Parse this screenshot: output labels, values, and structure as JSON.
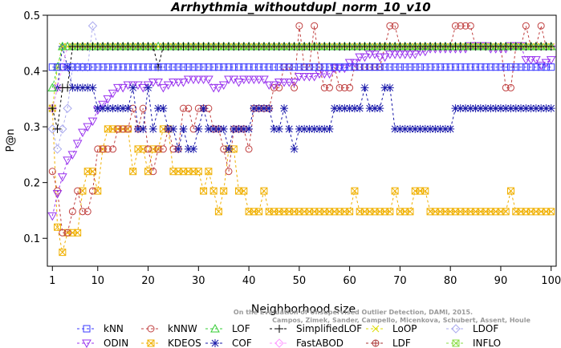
{
  "chart_data": {
    "type": "line",
    "title": "Arrhythmia_withoutdupl_norm_10_v10",
    "xlabel": "Neighborhood size",
    "ylabel": "P@n",
    "xlim": [
      0,
      101
    ],
    "ylim": [
      0.05,
      0.5
    ],
    "xticks": [
      1,
      10,
      20,
      30,
      40,
      50,
      60,
      70,
      80,
      90,
      100
    ],
    "yticks": [
      0.1,
      0.2,
      0.3,
      0.4,
      0.5
    ],
    "grid": false,
    "legend_position": "bottom",
    "credit": "Campos, Zimek, Sander, Campello, Micenkova, Schubert, Assent, Houle",
    "credit_line1": "On the Evaluation of Unsupervised Outlier Detection, DAMI, 2015.",
    "series": [
      {
        "name": "kNN",
        "color": "#3a3aff",
        "marker": "square",
        "dash": "3,3",
        "knots": [
          [
            1,
            0.407
          ],
          [
            100,
            0.407
          ]
        ]
      },
      {
        "name": "kNNW",
        "color": "#c04040",
        "marker": "circle",
        "dash": "3,3",
        "knots": [
          [
            1,
            0.22
          ],
          [
            2,
            0.185
          ],
          [
            3,
            0.11
          ],
          [
            4,
            0.11
          ],
          [
            5,
            0.148
          ],
          [
            6,
            0.185
          ],
          [
            7,
            0.148
          ],
          [
            8,
            0.148
          ],
          [
            9,
            0.185
          ],
          [
            10,
            0.26
          ],
          [
            11,
            0.26
          ],
          [
            12,
            0.26
          ],
          [
            13,
            0.26
          ],
          [
            14,
            0.296
          ],
          [
            16,
            0.296
          ],
          [
            17,
            0.333
          ],
          [
            18,
            0.296
          ],
          [
            19,
            0.333
          ],
          [
            20,
            0.26
          ],
          [
            21,
            0.22
          ],
          [
            22,
            0.26
          ],
          [
            23,
            0.26
          ],
          [
            24,
            0.296
          ],
          [
            25,
            0.26
          ],
          [
            26,
            0.26
          ],
          [
            27,
            0.333
          ],
          [
            28,
            0.333
          ],
          [
            29,
            0.296
          ],
          [
            30,
            0.333
          ],
          [
            32,
            0.333
          ],
          [
            33,
            0.296
          ],
          [
            35,
            0.26
          ],
          [
            36,
            0.22
          ],
          [
            37,
            0.296
          ],
          [
            38,
            0.296
          ],
          [
            39,
            0.296
          ],
          [
            40,
            0.26
          ],
          [
            41,
            0.333
          ],
          [
            44,
            0.333
          ],
          [
            45,
            0.37
          ],
          [
            46,
            0.37
          ],
          [
            47,
            0.407
          ],
          [
            48,
            0.407
          ],
          [
            49,
            0.37
          ],
          [
            50,
            0.481
          ],
          [
            51,
            0.407
          ],
          [
            52,
            0.407
          ],
          [
            53,
            0.481
          ],
          [
            54,
            0.407
          ],
          [
            55,
            0.37
          ],
          [
            56,
            0.37
          ],
          [
            57,
            0.407
          ],
          [
            58,
            0.37
          ],
          [
            60,
            0.37
          ],
          [
            61,
            0.407
          ],
          [
            66,
            0.407
          ],
          [
            67,
            0.444
          ],
          [
            68,
            0.481
          ],
          [
            69,
            0.481
          ],
          [
            70,
            0.444
          ],
          [
            71,
            0.444
          ],
          [
            80,
            0.444
          ],
          [
            81,
            0.481
          ],
          [
            84,
            0.481
          ],
          [
            85,
            0.444
          ],
          [
            90,
            0.444
          ],
          [
            91,
            0.37
          ],
          [
            92,
            0.37
          ],
          [
            93,
            0.444
          ],
          [
            94,
            0.444
          ],
          [
            95,
            0.481
          ],
          [
            96,
            0.444
          ],
          [
            97,
            0.444
          ],
          [
            98,
            0.481
          ],
          [
            99,
            0.444
          ],
          [
            100,
            0.444
          ]
        ]
      },
      {
        "name": "LOF",
        "color": "#33cc33",
        "marker": "triangle",
        "dash": "3,3",
        "knots": [
          [
            1,
            0.37
          ],
          [
            2,
            0.407
          ],
          [
            3,
            0.444
          ],
          [
            100,
            0.444
          ]
        ]
      },
      {
        "name": "SimplifiedLOF",
        "color": "#000000",
        "marker": "plus",
        "dash": "3,3",
        "knots": [
          [
            1,
            0.333
          ],
          [
            2,
            0.296
          ],
          [
            3,
            0.37
          ],
          [
            4,
            0.37
          ],
          [
            5,
            0.444
          ],
          [
            21,
            0.444
          ],
          [
            22,
            0.407
          ],
          [
            23,
            0.444
          ],
          [
            100,
            0.444
          ]
        ]
      },
      {
        "name": "LoOP",
        "color": "#dddd00",
        "marker": "x",
        "dash": "3,3",
        "knots": [
          [
            1,
            0.333
          ],
          [
            2,
            0.407
          ],
          [
            3,
            0.444
          ],
          [
            100,
            0.444
          ]
        ]
      },
      {
        "name": "LDOF",
        "color": "#aaaaee",
        "marker": "diamond",
        "dash": "3,3",
        "knots": [
          [
            1,
            0.296
          ],
          [
            2,
            0.26
          ],
          [
            3,
            0.296
          ],
          [
            4,
            0.333
          ],
          [
            5,
            0.407
          ],
          [
            8,
            0.407
          ],
          [
            9,
            0.481
          ],
          [
            10,
            0.444
          ],
          [
            100,
            0.444
          ]
        ]
      },
      {
        "name": "ODIN",
        "color": "#9933ee",
        "marker": "triangle-down",
        "dash": "3,3",
        "knots": [
          [
            1,
            0.14
          ],
          [
            2,
            0.18
          ],
          [
            3,
            0.21
          ],
          [
            4,
            0.24
          ],
          [
            5,
            0.25
          ],
          [
            6,
            0.27
          ],
          [
            7,
            0.29
          ],
          [
            8,
            0.3
          ],
          [
            9,
            0.31
          ],
          [
            10,
            0.33
          ],
          [
            11,
            0.34
          ],
          [
            12,
            0.35
          ],
          [
            13,
            0.36
          ],
          [
            14,
            0.37
          ],
          [
            16,
            0.375
          ],
          [
            18,
            0.375
          ],
          [
            19,
            0.37
          ],
          [
            20,
            0.375
          ],
          [
            21,
            0.38
          ],
          [
            23,
            0.37
          ],
          [
            24,
            0.375
          ],
          [
            25,
            0.38
          ],
          [
            28,
            0.385
          ],
          [
            32,
            0.385
          ],
          [
            33,
            0.37
          ],
          [
            35,
            0.375
          ],
          [
            36,
            0.385
          ],
          [
            38,
            0.38
          ],
          [
            39,
            0.385
          ],
          [
            42,
            0.385
          ],
          [
            44,
            0.375
          ],
          [
            46,
            0.38
          ],
          [
            50,
            0.39
          ],
          [
            54,
            0.395
          ],
          [
            57,
            0.405
          ],
          [
            60,
            0.415
          ],
          [
            62,
            0.425
          ],
          [
            64,
            0.43
          ],
          [
            66,
            0.425
          ],
          [
            68,
            0.43
          ],
          [
            72,
            0.43
          ],
          [
            74,
            0.435
          ],
          [
            76,
            0.44
          ],
          [
            80,
            0.44
          ],
          [
            84,
            0.445
          ],
          [
            88,
            0.44
          ],
          [
            92,
            0.445
          ],
          [
            95,
            0.42
          ],
          [
            96,
            0.42
          ],
          [
            98,
            0.41
          ],
          [
            99,
            0.415
          ],
          [
            100,
            0.42
          ]
        ]
      },
      {
        "name": "KDEOS",
        "color": "#f0b000",
        "marker": "square-x",
        "dash": "3,3",
        "knots": [
          [
            1,
            0.333
          ],
          [
            2,
            0.12
          ],
          [
            3,
            0.075
          ],
          [
            4,
            0.11
          ],
          [
            6,
            0.11
          ],
          [
            7,
            0.185
          ],
          [
            8,
            0.22
          ],
          [
            9,
            0.22
          ],
          [
            10,
            0.185
          ],
          [
            11,
            0.26
          ],
          [
            12,
            0.296
          ],
          [
            16,
            0.296
          ],
          [
            17,
            0.22
          ],
          [
            18,
            0.26
          ],
          [
            19,
            0.26
          ],
          [
            20,
            0.22
          ],
          [
            21,
            0.26
          ],
          [
            22,
            0.26
          ],
          [
            23,
            0.296
          ],
          [
            24,
            0.296
          ],
          [
            25,
            0.22
          ],
          [
            30,
            0.22
          ],
          [
            31,
            0.185
          ],
          [
            32,
            0.22
          ],
          [
            33,
            0.185
          ],
          [
            34,
            0.148
          ],
          [
            35,
            0.185
          ],
          [
            36,
            0.26
          ],
          [
            37,
            0.26
          ],
          [
            38,
            0.185
          ],
          [
            39,
            0.185
          ],
          [
            40,
            0.148
          ],
          [
            42,
            0.148
          ],
          [
            43,
            0.185
          ],
          [
            44,
            0.148
          ],
          [
            60,
            0.148
          ],
          [
            61,
            0.185
          ],
          [
            62,
            0.148
          ],
          [
            68,
            0.148
          ],
          [
            69,
            0.185
          ],
          [
            70,
            0.148
          ],
          [
            72,
            0.148
          ],
          [
            73,
            0.185
          ],
          [
            75,
            0.185
          ],
          [
            76,
            0.148
          ],
          [
            91,
            0.148
          ],
          [
            92,
            0.185
          ],
          [
            93,
            0.148
          ],
          [
            100,
            0.148
          ]
        ]
      },
      {
        "name": "COF",
        "color": "#1a1aaa",
        "marker": "star",
        "dash": "3,3",
        "knots": [
          [
            1,
            0.333
          ],
          [
            2,
            0.37
          ],
          [
            3,
            0.444
          ],
          [
            4,
            0.407
          ],
          [
            5,
            0.37
          ],
          [
            9,
            0.37
          ],
          [
            10,
            0.333
          ],
          [
            16,
            0.333
          ],
          [
            17,
            0.37
          ],
          [
            18,
            0.296
          ],
          [
            19,
            0.296
          ],
          [
            20,
            0.37
          ],
          [
            21,
            0.296
          ],
          [
            22,
            0.333
          ],
          [
            23,
            0.333
          ],
          [
            24,
            0.296
          ],
          [
            25,
            0.296
          ],
          [
            26,
            0.26
          ],
          [
            27,
            0.296
          ],
          [
            28,
            0.26
          ],
          [
            29,
            0.26
          ],
          [
            30,
            0.296
          ],
          [
            31,
            0.333
          ],
          [
            32,
            0.296
          ],
          [
            35,
            0.296
          ],
          [
            36,
            0.26
          ],
          [
            37,
            0.296
          ],
          [
            38,
            0.296
          ],
          [
            39,
            0.296
          ],
          [
            40,
            0.296
          ],
          [
            41,
            0.333
          ],
          [
            44,
            0.333
          ],
          [
            45,
            0.296
          ],
          [
            46,
            0.296
          ],
          [
            47,
            0.333
          ],
          [
            48,
            0.296
          ],
          [
            49,
            0.26
          ],
          [
            50,
            0.296
          ],
          [
            56,
            0.296
          ],
          [
            57,
            0.333
          ],
          [
            62,
            0.333
          ],
          [
            63,
            0.37
          ],
          [
            64,
            0.333
          ],
          [
            66,
            0.333
          ],
          [
            67,
            0.37
          ],
          [
            68,
            0.37
          ],
          [
            69,
            0.296
          ],
          [
            80,
            0.296
          ],
          [
            81,
            0.333
          ],
          [
            100,
            0.333
          ]
        ]
      },
      {
        "name": "FastABOD",
        "color": "#ff99ff",
        "marker": "diamond",
        "dash": "3,3",
        "knots": [
          [
            1,
            0.333
          ],
          [
            2,
            0.37
          ],
          [
            3,
            0.407
          ],
          [
            4,
            0.444
          ],
          [
            100,
            0.444
          ]
        ]
      },
      {
        "name": "LDF",
        "color": "#aa3333",
        "marker": "circle-plus",
        "dash": "3,3",
        "knots": [
          [
            1,
            0.333
          ],
          [
            100,
            0.333
          ]
        ],
        "hidden_line": true
      },
      {
        "name": "INFLO",
        "color": "#88dd44",
        "marker": "square-x",
        "dash": "3,3",
        "knots": [
          [
            1,
            0.444
          ],
          [
            100,
            0.444
          ]
        ],
        "hidden_line": true
      }
    ]
  }
}
